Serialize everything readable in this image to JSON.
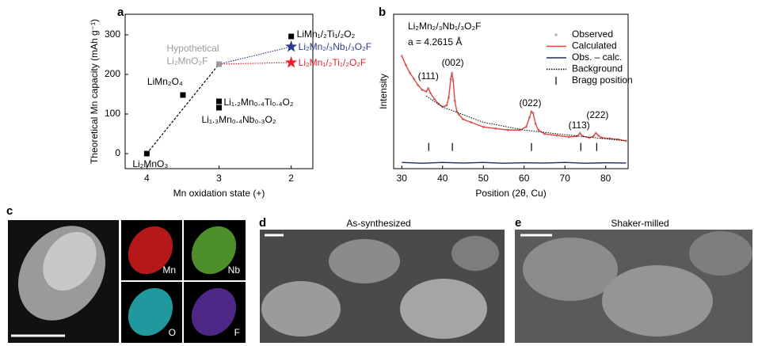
{
  "chart_data": [
    {
      "type": "scatter",
      "panel_label": "a",
      "xlabel": "Mn oxidation state (+)",
      "ylabel": "Theoretical Mn capacity (mAh g⁻¹)",
      "xlim": [
        4.3,
        1.7
      ],
      "ylim": [
        -38,
        352
      ],
      "xticks": [
        4,
        3,
        2
      ],
      "yticks": [
        0,
        100,
        200,
        300
      ],
      "points": [
        {
          "label": [
            "Li₂MnO₃"
          ],
          "x": 4,
          "y": 0,
          "marker": "square",
          "color": "#000000"
        },
        {
          "label": [
            "LiMn₂O₄"
          ],
          "x": 3.5,
          "y": 148,
          "marker": "square",
          "color": "#000000"
        },
        {
          "label": [
            "Li₁.₂Mn₀.₄Ti₀.₄O₂"
          ],
          "x": 3,
          "y": 132,
          "marker": "square",
          "color": "#000000"
        },
        {
          "label": [
            "Li₁.₃Mn₀.₄Nb₀.₃O₂"
          ],
          "x": 3,
          "y": 116,
          "marker": "square",
          "color": "#000000"
        },
        {
          "label": [
            "LiMn₁/₂Ti₁/₂O₂"
          ],
          "x": 2,
          "y": 296,
          "marker": "square",
          "color": "#000000"
        },
        {
          "label": [
            "Hypothetical",
            "Li₂MnO₂F"
          ],
          "x": 3,
          "y": 226,
          "marker": "square",
          "color": "#9a9a9a"
        },
        {
          "label": [
            "Li₂Mn₂/₃Nb₁/₃O₂F"
          ],
          "x": 2,
          "y": 270,
          "marker": "star",
          "color": "#2b3a8c"
        },
        {
          "label": [
            "Li₂Mn₁/₂Ti₁/₂O₂F"
          ],
          "x": 2,
          "y": 230,
          "marker": "star",
          "color": "#e8202a"
        }
      ],
      "lines": [
        {
          "color": "#000000",
          "style": "dashed",
          "x": [
            4,
            3
          ],
          "y": [
            0,
            226
          ]
        },
        {
          "color": "#2b3a8c",
          "style": "dotted",
          "x": [
            3,
            2
          ],
          "y": [
            226,
            270
          ]
        },
        {
          "color": "#e8202a",
          "style": "dotted",
          "x": [
            3,
            2
          ],
          "y": [
            226,
            230
          ]
        }
      ]
    },
    {
      "type": "line",
      "panel_label": "b",
      "xlabel": "Position (2θ, Cu)",
      "ylabel": "Intensity",
      "compound": "Li₂Mn₂/₃Nb₁/₃O₂F",
      "lattice": "a = 4.2615 Å",
      "xlim": [
        28,
        85.5
      ],
      "ylim": [
        0,
        100
      ],
      "xticks": [
        30,
        40,
        50,
        60,
        70,
        80
      ],
      "x": [
        30,
        31,
        32,
        33,
        34,
        35,
        36,
        36.5,
        37,
        38,
        39,
        40,
        41,
        41.5,
        42,
        42.3,
        42.6,
        43,
        43.5,
        44,
        45,
        47,
        50,
        53,
        56,
        59,
        60.5,
        61.3,
        61.8,
        62.2,
        62.8,
        63.5,
        65,
        68,
        71,
        73,
        73.7,
        74.4,
        76,
        77,
        77.6,
        78.2,
        79,
        81,
        83,
        85
      ],
      "series": [
        {
          "name": "Observed",
          "color": "#b5b5b5",
          "style": "dots",
          "values": [
            73,
            67,
            62,
            58,
            54,
            51,
            50,
            52,
            49,
            45,
            42,
            40,
            41,
            46,
            58,
            62,
            57,
            44,
            37,
            35,
            32,
            30,
            27,
            26,
            25,
            25,
            27,
            33,
            37,
            36,
            29,
            25,
            22.5,
            21.5,
            20.5,
            21,
            23,
            21,
            20,
            21,
            23,
            21.5,
            20,
            19.5,
            19,
            18
          ]
        },
        {
          "name": "Calculated",
          "color": "#e8423f",
          "style": "solid",
          "values": [
            73,
            67,
            62,
            58,
            54,
            51,
            50,
            52,
            49,
            45,
            42,
            40,
            41,
            46,
            58,
            62,
            57,
            44,
            37,
            35,
            32,
            30,
            27,
            26,
            25,
            25,
            27,
            33,
            37,
            36,
            29,
            25,
            22.5,
            21.5,
            20.5,
            21,
            23,
            21,
            20,
            21,
            23,
            21.5,
            20,
            19.5,
            19,
            18
          ]
        },
        {
          "name": "Obs. – calc.",
          "color": "#1f2a5c",
          "style": "solid",
          "x": [
            30,
            35,
            40,
            45,
            50,
            55,
            60,
            65,
            70,
            75,
            80,
            85
          ],
          "values": [
            4,
            3.5,
            4,
            3.6,
            4,
            3.5,
            3.8,
            3.6,
            4,
            3.5,
            3.8,
            3.6
          ]
        },
        {
          "name": "Background",
          "color": "#000000",
          "style": "dotted",
          "x": [
            36,
            40,
            50,
            60,
            70,
            85
          ],
          "values": [
            47,
            40,
            30,
            25,
            22,
            18
          ]
        }
      ],
      "bragg": {
        "name": "Bragg position",
        "positions": [
          36.6,
          42.4,
          61.8,
          73.9,
          77.8
        ],
        "level": 14
      },
      "peak_labels": [
        {
          "text": "(111)",
          "x": 36.5
        },
        {
          "text": "(002)",
          "x": 42.5
        },
        {
          "text": "(022)",
          "x": 61.5
        },
        {
          "text": "(113)",
          "x": 73.5
        },
        {
          "text": "(222)",
          "x": 78
        }
      ]
    }
  ],
  "panels": {
    "c": {
      "label": "c",
      "maps": [
        "Mn",
        "Nb",
        "O",
        "F"
      ]
    },
    "d": {
      "label": "d",
      "title": "As-synthesized"
    },
    "e": {
      "label": "e",
      "title": "Shaker-milled"
    }
  }
}
